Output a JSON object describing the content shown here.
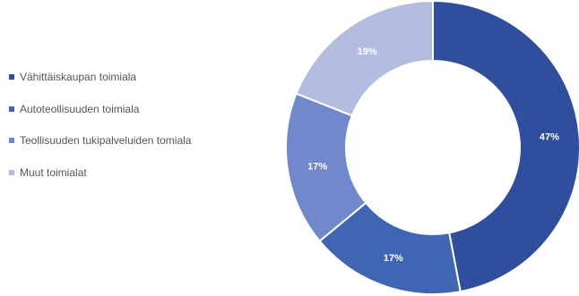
{
  "chart_data": {
    "type": "pie",
    "variant": "donut",
    "categories": [
      "Vähittäiskaupan toimiala",
      "Autoteollisuuden toimiala",
      "Teollisuuden tukipalveluiden tomiala",
      "Muut toimialat"
    ],
    "values": [
      47,
      17,
      17,
      19
    ],
    "value_labels": [
      "47%",
      "17%",
      "17%",
      "19%"
    ],
    "colors": [
      "#2f4e9e",
      "#3f65b5",
      "#7189cc",
      "#b3bde0"
    ],
    "legend_position": "left",
    "title": ""
  }
}
